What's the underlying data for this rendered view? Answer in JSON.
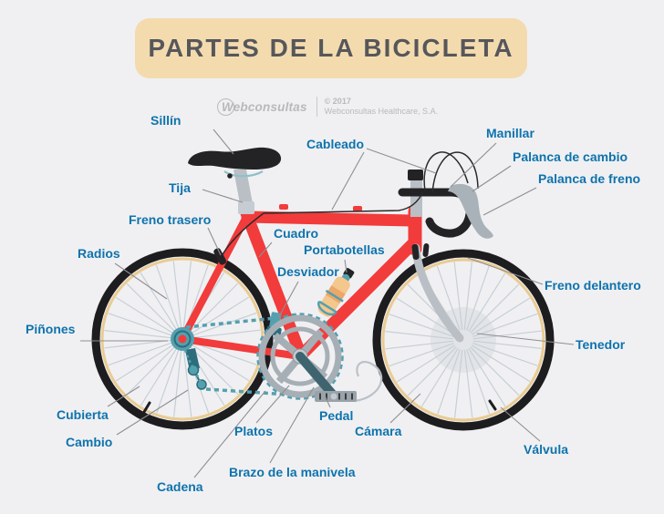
{
  "title": "PARTES DE LA BICICLETA",
  "watermark": {
    "brand": "Webconsultas",
    "copyright": "© 2017",
    "company": "Webconsultas Healthcare, S.A."
  },
  "icons": {
    "brand_logo": "circle-w-icon"
  },
  "palette": {
    "background": "#f0f0f2",
    "title_box": "#f4dbae",
    "title_text": "#57575a",
    "label_blue": "#0e73ad",
    "leader_line": "#8f8f92",
    "frame_red": "#f23b3b",
    "metal_gray": "#b9bfc5",
    "crank_gray": "#a6afb5",
    "dark": "#232325",
    "tire_black": "#1d1d1f",
    "rim_tan": "#e9cb92",
    "spoke_gray": "#c6cfd6",
    "teal": "#54a0af",
    "teal_dark": "#2d6d7c",
    "bottle_tan": "#f4c78c",
    "bottle_orange": "#eda76a",
    "watermark_gray": "#b9b9bc"
  },
  "labels": {
    "sillin": "Sillín",
    "tija": "Tija",
    "freno_trasero": "Freno trasero",
    "radios": "Radios",
    "pinones": "Piñones",
    "cubierta": "Cubierta",
    "cambio": "Cambio",
    "cadena": "Cadena",
    "cableado": "Cableado",
    "cuadro": "Cuadro",
    "portabotellas": "Portabotellas",
    "desviador": "Desviador",
    "manillar": "Manillar",
    "palanca_de_cambio": "Palanca de cambio",
    "palanca_de_freno": "Palanca de freno",
    "freno_delantero": "Freno delantero",
    "tenedor": "Tenedor",
    "camara": "Cámara",
    "valvula": "Válvula",
    "platos": "Platos",
    "pedal": "Pedal",
    "brazo_de_la_manivela": "Brazo de la manivela"
  }
}
